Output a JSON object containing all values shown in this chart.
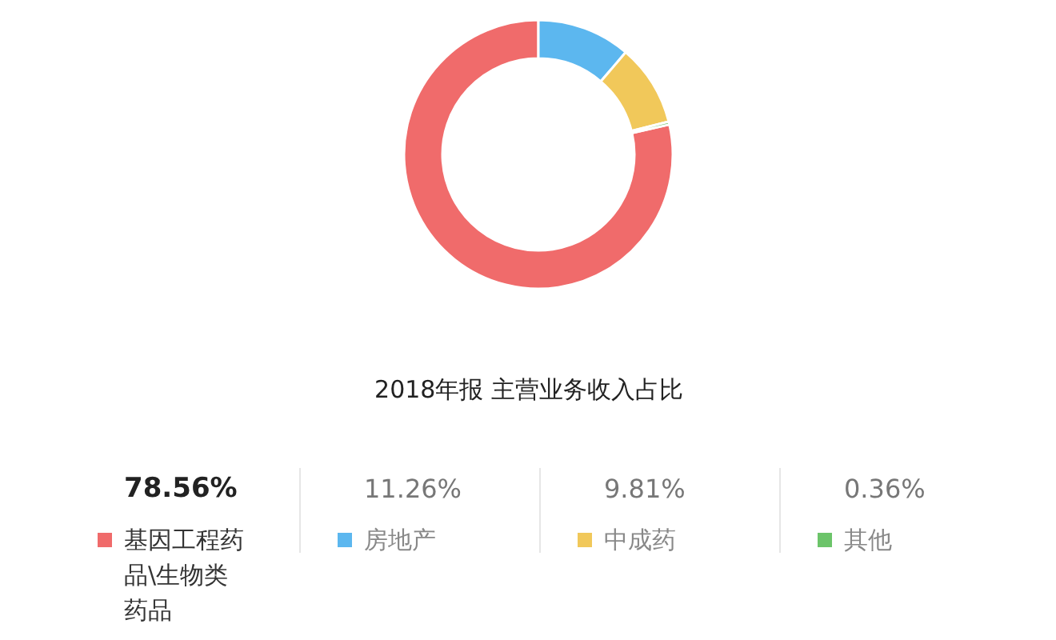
{
  "chart_data": {
    "type": "donut",
    "title": "2018年报 主营业务收入占比",
    "categories": [
      "基因工程药品\\生物类药品",
      "房地产",
      "中成药",
      "其他"
    ],
    "values": [
      78.56,
      11.26,
      9.81,
      0.36
    ],
    "colors": [
      "#f06b6b",
      "#5cb7ef",
      "#f1c85a",
      "#6cc46a"
    ],
    "value_labels": [
      "78.56%",
      "11.26%",
      "9.81%",
      "0.36%"
    ],
    "legend": "bottom"
  }
}
